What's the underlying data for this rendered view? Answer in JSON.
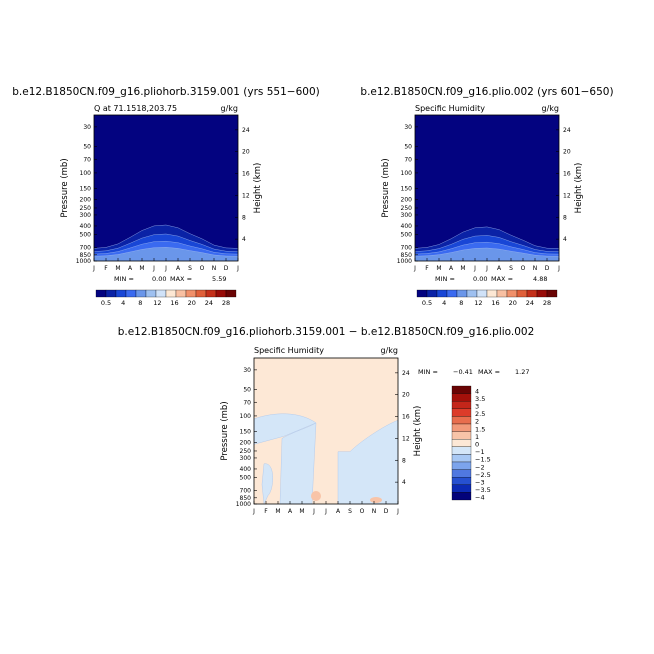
{
  "colors": {
    "scale_full": [
      "#030380",
      "#0a22a6",
      "#1846d6",
      "#3a6af0",
      "#6a96ea",
      "#9ec0f0",
      "#d0e2f8",
      "#fde8d4",
      "#f8c0a2",
      "#f0906a",
      "#e0603a",
      "#c4301a",
      "#980c08",
      "#6a0404"
    ],
    "scale_diff": [
      "#6a0404",
      "#a4100a",
      "#c4261a",
      "#dc3c2a",
      "#e86e4e",
      "#f29a7a",
      "#f8c4a8",
      "#fde8d6",
      "#d4e6f8",
      "#a8c8f4",
      "#7ca4ec",
      "#5078e0",
      "#2650d0",
      "#0c2ab4",
      "#03037a"
    ],
    "deep_blue": "#030380",
    "pale_blue": "#d4e6f8",
    "peach": "#fde8d6",
    "salmon": "#f8c4a8"
  },
  "common": {
    "ylabel_left": "Pressure (mb)",
    "ylabel_right": "Height (km)",
    "pressure_ticks": [
      "30",
      "50",
      "70",
      "100",
      "150",
      "200",
      "250",
      "300",
      "400",
      "500",
      "700",
      "850",
      "1000"
    ],
    "height_ticks": [
      "24",
      "20",
      "16",
      "12",
      "8",
      "4"
    ],
    "month_ticks": [
      "J",
      "F",
      "M",
      "A",
      "M",
      "J",
      "J",
      "A",
      "S",
      "O",
      "N",
      "D",
      "J"
    ]
  },
  "chart_data": [
    {
      "type": "heatmap",
      "title": "b.e12.B1850CN.f09_g16.pliohorb.3159.001 (yrs 551−600)",
      "subtitle_left": "Q at 71.1518,203.75",
      "subtitle_right": "g/kg",
      "stats": {
        "min_label": "MIN =",
        "min": "0.00",
        "max_label": "MAX =",
        "max": "5.59"
      },
      "x": [
        "J",
        "F",
        "M",
        "A",
        "M",
        "J",
        "J",
        "A",
        "S",
        "O",
        "N",
        "D",
        "J"
      ],
      "y_pressure_mb": [
        30,
        50,
        70,
        100,
        150,
        200,
        250,
        300,
        400,
        500,
        700,
        850,
        1000
      ],
      "y_height_km": [
        24,
        20,
        16,
        12,
        8,
        4
      ],
      "units": "g/kg",
      "colorbar_levels": [
        "0.5",
        "4",
        "8",
        "12",
        "16",
        "20",
        "24",
        "28"
      ],
      "contour_top_mb_by_month": {
        "threshold_0_5": [
          720,
          700,
          640,
          540,
          450,
          400,
          390,
          420,
          490,
          560,
          660,
          710,
          720
        ]
      }
    },
    {
      "type": "heatmap",
      "title": "b.e12.B1850CN.f09_g16.plio.002 (yrs 601−650)",
      "subtitle_left": "Specific Humidity",
      "subtitle_right": "g/kg",
      "stats": {
        "min_label": "MIN =",
        "min": "0.00",
        "max_label": "MAX =",
        "max": "4.88"
      },
      "x": [
        "J",
        "F",
        "M",
        "A",
        "M",
        "J",
        "J",
        "A",
        "S",
        "O",
        "N",
        "D",
        "J"
      ],
      "y_pressure_mb": [
        30,
        50,
        70,
        100,
        150,
        200,
        250,
        300,
        400,
        500,
        700,
        850,
        1000
      ],
      "y_height_km": [
        24,
        20,
        16,
        12,
        8,
        4
      ],
      "units": "g/kg",
      "colorbar_levels": [
        "0.5",
        "4",
        "8",
        "12",
        "16",
        "20",
        "24",
        "28"
      ],
      "contour_top_mb_by_month": {
        "threshold_0_5": [
          720,
          700,
          650,
          560,
          470,
          420,
          410,
          440,
          510,
          580,
          670,
          715,
          720
        ]
      }
    },
    {
      "type": "heatmap",
      "title": "b.e12.B1850CN.f09_g16.pliohorb.3159.001  −  b.e12.B1850CN.f09_g16.plio.002",
      "subtitle_left": "Specific Humidity",
      "subtitle_right": "g/kg",
      "stats": {
        "min_label": "MIN =",
        "min": "−0.41",
        "max_label": "MAX =",
        "max": "1.27"
      },
      "x": [
        "J",
        "F",
        "M",
        "A",
        "M",
        "J",
        "J",
        "A",
        "S",
        "O",
        "N",
        "D",
        "J"
      ],
      "y_pressure_mb": [
        30,
        50,
        70,
        100,
        150,
        200,
        250,
        300,
        400,
        500,
        700,
        850,
        1000
      ],
      "y_height_km": [
        24,
        20,
        16,
        12,
        8,
        4
      ],
      "units": "g/kg",
      "colorbar_levels": [
        "4",
        "3.5",
        "3",
        "2.5",
        "2",
        "1.5",
        "1",
        "0",
        "−1",
        "−1.5",
        "−2",
        "−2.5",
        "−3",
        "−3.5",
        "−4"
      ],
      "background_range": [
        0,
        1
      ],
      "negative_region_range": [
        -1,
        0
      ],
      "positive_spots_range": [
        1,
        1.5
      ]
    }
  ]
}
